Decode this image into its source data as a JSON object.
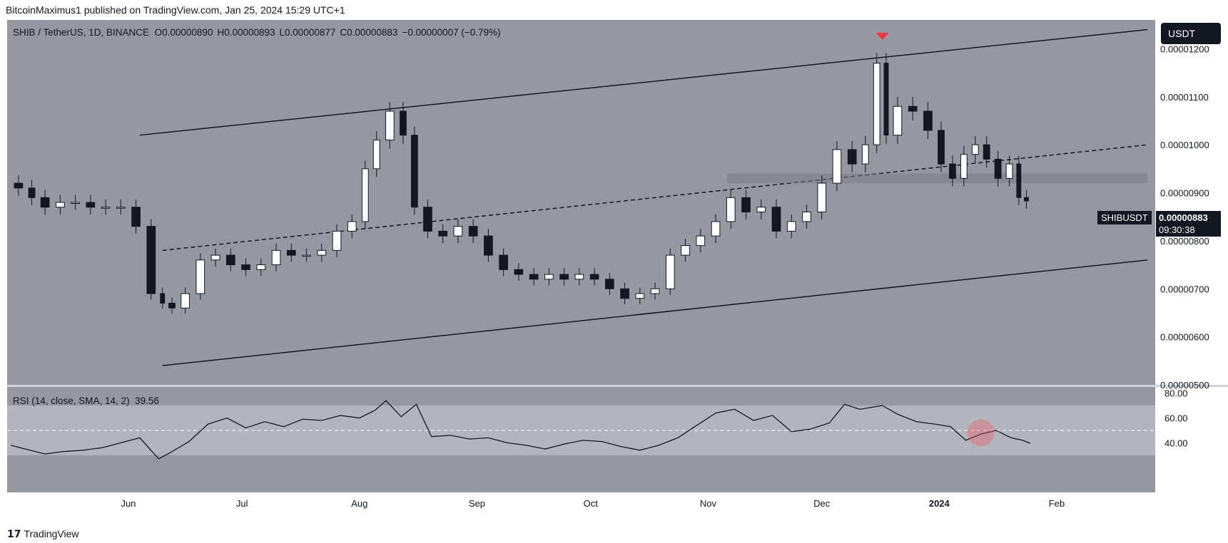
{
  "header": {
    "publisher_line": "BitcoinMaximus1 published on TradingView.com, Jan 25, 2024 15:29 UTC+1"
  },
  "footer": {
    "brand": "TradingView"
  },
  "toolbar": {
    "currency_label": "USDT"
  },
  "legend": {
    "symbol": "SHIB / TetherUS, 1D, BINANCE",
    "open_label": "O",
    "open": "0.00000890",
    "high_label": "H",
    "high": "0.00000893",
    "low_label": "L",
    "low": "0.00000877",
    "close_label": "C",
    "close": "0.00000883",
    "change": "−0.00000007 (−0.79%)"
  },
  "price_tag": {
    "symbol": "SHIBUSDT",
    "price": "0.00000883",
    "countdown": "09:30:38"
  },
  "rsi": {
    "legend": "RSI (14, close, SMA, 14, 2)",
    "value": "39.56"
  },
  "colors": {
    "background": "#9598a1",
    "candle_up": "#ffffff",
    "candle_down": "#131722",
    "rsi_band": "#b2b5be",
    "highlight_circle": "#f7525f",
    "marker": "#f23645"
  },
  "chart_data": [
    {
      "type": "candlestick",
      "title": "SHIB / TetherUS, 1D, BINANCE",
      "y_axis_ticks": [
        "0.00001200",
        "0.00001100",
        "0.00001000",
        "0.00000900",
        "0.00000800",
        "0.00000700",
        "0.00000600",
        "0.00000500"
      ],
      "ylim": [
        5e-06,
        1.26e-05
      ],
      "x_axis_ticks": [
        "Jun",
        "Jul",
        "Aug",
        "Sep",
        "Oct",
        "Nov",
        "Dec",
        "2024",
        "Feb"
      ],
      "x_axis_dates": [
        "2023-06-01",
        "2023-07-01",
        "2023-08-01",
        "2023-09-01",
        "2023-10-01",
        "2023-11-01",
        "2023-12-01",
        "2024-01-01",
        "2024-02-01"
      ],
      "xlim": [
        "2023-04-30",
        "2024-02-27"
      ],
      "close_series": [
        [
          "2023-05-01",
          9.2e-06
        ],
        [
          "2023-05-05",
          9.1e-06
        ],
        [
          "2023-05-08",
          8.9e-06
        ],
        [
          "2023-05-12",
          8.7e-06
        ],
        [
          "2023-05-16",
          8.8e-06
        ],
        [
          "2023-05-20",
          8.8e-06
        ],
        [
          "2023-05-24",
          8.7e-06
        ],
        [
          "2023-05-28",
          8.7e-06
        ],
        [
          "2023-06-01",
          8.7e-06
        ],
        [
          "2023-06-05",
          8.3e-06
        ],
        [
          "2023-06-09",
          6.9e-06
        ],
        [
          "2023-06-11",
          6.7e-06
        ],
        [
          "2023-06-14",
          6.6e-06
        ],
        [
          "2023-06-18",
          6.9e-06
        ],
        [
          "2023-06-22",
          7.6e-06
        ],
        [
          "2023-06-26",
          7.7e-06
        ],
        [
          "2023-06-30",
          7.5e-06
        ],
        [
          "2023-07-04",
          7.4e-06
        ],
        [
          "2023-07-08",
          7.5e-06
        ],
        [
          "2023-07-12",
          7.8e-06
        ],
        [
          "2023-07-16",
          7.7e-06
        ],
        [
          "2023-07-20",
          7.7e-06
        ],
        [
          "2023-07-24",
          7.8e-06
        ],
        [
          "2023-07-28",
          8.2e-06
        ],
        [
          "2023-08-01",
          8.4e-06
        ],
        [
          "2023-08-04",
          9.5e-06
        ],
        [
          "2023-08-07",
          1.01e-05
        ],
        [
          "2023-08-11",
          1.07e-05
        ],
        [
          "2023-08-14",
          1.02e-05
        ],
        [
          "2023-08-17",
          8.7e-06
        ],
        [
          "2023-08-21",
          8.2e-06
        ],
        [
          "2023-08-25",
          8.1e-06
        ],
        [
          "2023-08-29",
          8.3e-06
        ],
        [
          "2023-09-02",
          8.1e-06
        ],
        [
          "2023-09-06",
          7.7e-06
        ],
        [
          "2023-09-10",
          7.4e-06
        ],
        [
          "2023-09-14",
          7.3e-06
        ],
        [
          "2023-09-18",
          7.2e-06
        ],
        [
          "2023-09-22",
          7.3e-06
        ],
        [
          "2023-09-26",
          7.2e-06
        ],
        [
          "2023-09-30",
          7.3e-06
        ],
        [
          "2023-10-04",
          7.2e-06
        ],
        [
          "2023-10-08",
          7e-06
        ],
        [
          "2023-10-12",
          6.8e-06
        ],
        [
          "2023-10-16",
          6.9e-06
        ],
        [
          "2023-10-20",
          7e-06
        ],
        [
          "2023-10-24",
          7.7e-06
        ],
        [
          "2023-10-28",
          7.9e-06
        ],
        [
          "2023-11-01",
          8.1e-06
        ],
        [
          "2023-11-05",
          8.4e-06
        ],
        [
          "2023-11-09",
          8.9e-06
        ],
        [
          "2023-11-13",
          8.6e-06
        ],
        [
          "2023-11-17",
          8.7e-06
        ],
        [
          "2023-11-21",
          8.2e-06
        ],
        [
          "2023-11-25",
          8.4e-06
        ],
        [
          "2023-11-29",
          8.6e-06
        ],
        [
          "2023-12-03",
          9.2e-06
        ],
        [
          "2023-12-07",
          9.9e-06
        ],
        [
          "2023-12-11",
          9.6e-06
        ],
        [
          "2023-12-14",
          1e-05
        ],
        [
          "2023-12-17",
          1.17e-05
        ],
        [
          "2023-12-19",
          1.02e-05
        ],
        [
          "2023-12-23",
          1.08e-05
        ],
        [
          "2023-12-27",
          1.07e-05
        ],
        [
          "2023-12-31",
          1.03e-05
        ],
        [
          "2024-01-03",
          9.6e-06
        ],
        [
          "2024-01-06",
          9.3e-06
        ],
        [
          "2024-01-09",
          9.8e-06
        ],
        [
          "2024-01-12",
          1e-05
        ],
        [
          "2024-01-15",
          9.7e-06
        ],
        [
          "2024-01-18",
          9.3e-06
        ],
        [
          "2024-01-21",
          9.6e-06
        ],
        [
          "2024-01-23",
          8.9e-06
        ],
        [
          "2024-01-25",
          8.83e-06
        ]
      ],
      "annotations": [
        {
          "type": "trendline",
          "label": "channel-resistance",
          "from": [
            "2023-06-04",
            1.02e-05
          ],
          "to": [
            "2024-02-25",
            1.24e-05
          ]
        },
        {
          "type": "trendline",
          "label": "channel-midline",
          "style": "dashed",
          "from": [
            "2023-06-10",
            7.8e-06
          ],
          "to": [
            "2024-02-25",
            1e-05
          ]
        },
        {
          "type": "trendline",
          "label": "channel-support",
          "from": [
            "2023-06-10",
            5.4e-06
          ],
          "to": [
            "2024-02-25",
            7.6e-06
          ]
        },
        {
          "type": "zone",
          "label": "horizontal-resistance",
          "from_date": "2023-11-06",
          "to_date": "2024-02-25",
          "low": 9.2e-06,
          "high": 9.4e-06
        },
        {
          "type": "marker",
          "label": "top-marker",
          "date": "2023-12-17",
          "value": 1.22e-05
        }
      ]
    },
    {
      "type": "line",
      "title": "RSI (14, close, SMA, 14, 2)",
      "y_axis_ticks": [
        "80.00",
        "60.00",
        "40.00"
      ],
      "ylim": [
        0,
        85
      ],
      "band": [
        30,
        70
      ],
      "midline": 50,
      "x": [
        "2023-05-01",
        "2023-05-06",
        "2023-05-10",
        "2023-05-15",
        "2023-05-20",
        "2023-05-25",
        "2023-05-30",
        "2023-06-04",
        "2023-06-09",
        "2023-06-12",
        "2023-06-17",
        "2023-06-22",
        "2023-06-27",
        "2023-07-02",
        "2023-07-07",
        "2023-07-12",
        "2023-07-17",
        "2023-07-22",
        "2023-07-27",
        "2023-08-01",
        "2023-08-05",
        "2023-08-08",
        "2023-08-12",
        "2023-08-16",
        "2023-08-20",
        "2023-08-25",
        "2023-08-30",
        "2023-09-04",
        "2023-09-09",
        "2023-09-14",
        "2023-09-19",
        "2023-09-24",
        "2023-09-29",
        "2023-10-04",
        "2023-10-09",
        "2023-10-14",
        "2023-10-19",
        "2023-10-24",
        "2023-10-29",
        "2023-11-03",
        "2023-11-08",
        "2023-11-13",
        "2023-11-18",
        "2023-11-23",
        "2023-11-28",
        "2023-12-03",
        "2023-12-07",
        "2023-12-11",
        "2023-12-15",
        "2023-12-17",
        "2023-12-21",
        "2023-12-26",
        "2023-12-31",
        "2024-01-04",
        "2024-01-08",
        "2024-01-12",
        "2024-01-16",
        "2024-01-20",
        "2024-01-23",
        "2024-01-25"
      ],
      "values": [
        38,
        34,
        31,
        33,
        34,
        36,
        40,
        44,
        27,
        32,
        41,
        55,
        60,
        52,
        57,
        53,
        59,
        58,
        62,
        60,
        66,
        74,
        61,
        71,
        45,
        46,
        43,
        44,
        40,
        38,
        35,
        39,
        42,
        41,
        37,
        34,
        38,
        44,
        54,
        64,
        67,
        58,
        62,
        49,
        51,
        56,
        71,
        67,
        69,
        70,
        63,
        57,
        55,
        53,
        42,
        47,
        50,
        44,
        42,
        39.56
      ]
    }
  ]
}
